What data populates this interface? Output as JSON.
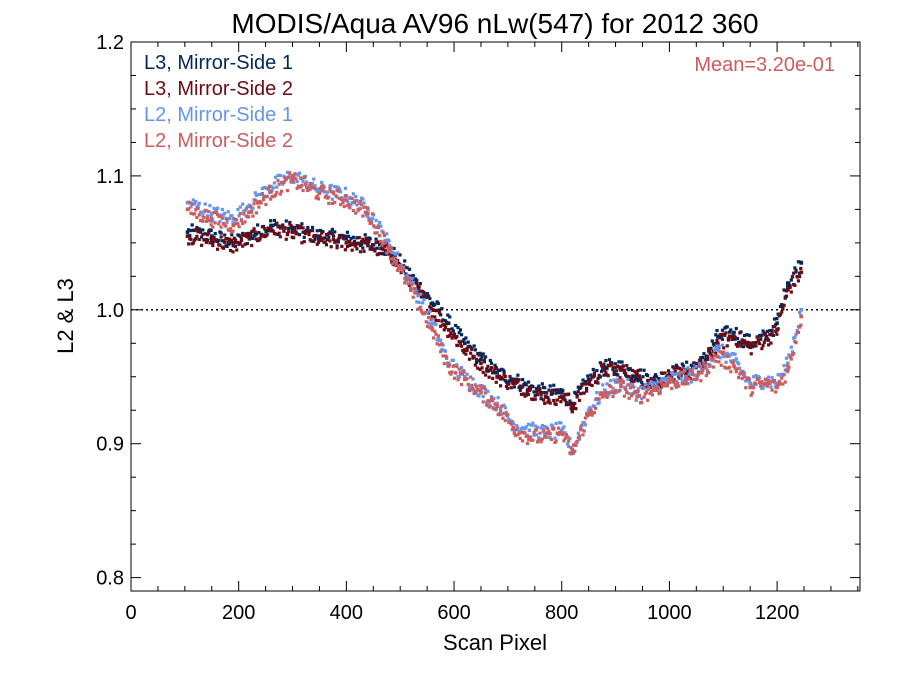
{
  "chart_data": {
    "type": "scatter",
    "title": "MODIS/Aqua AV96 nLw(547) for 2012 360",
    "xlabel": "Scan Pixel",
    "ylabel": "L2 & L3",
    "xlim": [
      0,
      1354
    ],
    "ylim": [
      0.79,
      1.2
    ],
    "x_ticks": [
      0,
      200,
      400,
      600,
      800,
      1000,
      1200
    ],
    "y_ticks": [
      0.8,
      0.9,
      1.0,
      1.1,
      1.2
    ],
    "x_tick_labels": [
      "0",
      "200",
      "400",
      "600",
      "800",
      "1000",
      "1200"
    ],
    "y_tick_labels": [
      "0.8",
      "0.9",
      "1.0",
      "1.1",
      "1.2"
    ],
    "reference_line": 1.0,
    "grid": false,
    "legend_position": "top-left",
    "annotation": {
      "text": "Mean=3.20e-01",
      "color": "#cd5c5c"
    },
    "series": [
      {
        "name": "L3, Mirror-Side 1",
        "color": "#00285a",
        "x": [
          105,
          150,
          190,
          220,
          260,
          300,
          350,
          400,
          440,
          480,
          520,
          560,
          590,
          620,
          650,
          680,
          710,
          740,
          770,
          800,
          820,
          850,
          880,
          910,
          940,
          970,
          1000,
          1030,
          1060,
          1090,
          1120,
          1150,
          1180,
          1200,
          1220,
          1245
        ],
        "y": [
          1.058,
          1.055,
          1.05,
          1.055,
          1.063,
          1.06,
          1.055,
          1.053,
          1.05,
          1.045,
          1.025,
          1.005,
          0.99,
          0.975,
          0.963,
          0.953,
          0.948,
          0.942,
          0.938,
          0.938,
          0.93,
          0.948,
          0.957,
          0.957,
          0.952,
          0.947,
          0.952,
          0.955,
          0.96,
          0.98,
          0.983,
          0.975,
          0.98,
          0.99,
          1.02,
          1.035
        ]
      },
      {
        "name": "L3, Mirror-Side 2",
        "color": "#6e0a14",
        "x": [
          105,
          150,
          190,
          220,
          260,
          300,
          350,
          400,
          440,
          480,
          520,
          560,
          590,
          620,
          650,
          680,
          710,
          740,
          770,
          800,
          820,
          850,
          880,
          910,
          940,
          970,
          1000,
          1030,
          1060,
          1090,
          1120,
          1150,
          1180,
          1200,
          1220,
          1245
        ],
        "y": [
          1.055,
          1.052,
          1.048,
          1.053,
          1.06,
          1.058,
          1.052,
          1.05,
          1.048,
          1.043,
          1.02,
          1.0,
          0.985,
          0.97,
          0.96,
          0.95,
          0.945,
          0.94,
          0.935,
          0.935,
          0.928,
          0.945,
          0.955,
          0.955,
          0.95,
          0.945,
          0.95,
          0.952,
          0.958,
          0.975,
          0.98,
          0.972,
          0.978,
          0.985,
          1.015,
          1.028
        ]
      },
      {
        "name": "L2, Mirror-Side 1",
        "color": "#6495ed",
        "x": [
          105,
          150,
          190,
          220,
          260,
          300,
          350,
          400,
          440,
          480,
          520,
          560,
          590,
          620,
          650,
          680,
          710,
          740,
          770,
          800,
          820,
          850,
          880,
          910,
          940,
          970,
          1000,
          1030,
          1060,
          1090,
          1120,
          1150,
          1180,
          1200,
          1220,
          1245
        ],
        "y": [
          1.08,
          1.072,
          1.068,
          1.078,
          1.092,
          1.1,
          1.09,
          1.085,
          1.075,
          1.048,
          1.02,
          0.99,
          0.96,
          0.95,
          0.94,
          0.93,
          0.915,
          0.91,
          0.908,
          0.91,
          0.895,
          0.925,
          0.94,
          0.945,
          0.938,
          0.942,
          0.948,
          0.95,
          0.955,
          0.97,
          0.962,
          0.945,
          0.948,
          0.945,
          0.96,
          1.0
        ]
      },
      {
        "name": "L2, Mirror-Side 2",
        "color": "#cd5c5c",
        "x": [
          105,
          150,
          190,
          220,
          260,
          300,
          350,
          400,
          440,
          480,
          520,
          560,
          590,
          620,
          650,
          680,
          710,
          740,
          770,
          800,
          820,
          850,
          880,
          910,
          940,
          970,
          1000,
          1030,
          1060,
          1090,
          1120,
          1150,
          1180,
          1200,
          1220,
          1245
        ],
        "y": [
          1.075,
          1.068,
          1.063,
          1.073,
          1.088,
          1.097,
          1.087,
          1.082,
          1.072,
          1.045,
          1.015,
          0.985,
          0.958,
          0.948,
          0.938,
          0.928,
          0.912,
          0.905,
          0.905,
          0.908,
          0.893,
          0.922,
          0.937,
          0.943,
          0.935,
          0.94,
          0.946,
          0.948,
          0.953,
          0.965,
          0.958,
          0.942,
          0.945,
          0.942,
          0.955,
          0.995
        ]
      }
    ]
  }
}
